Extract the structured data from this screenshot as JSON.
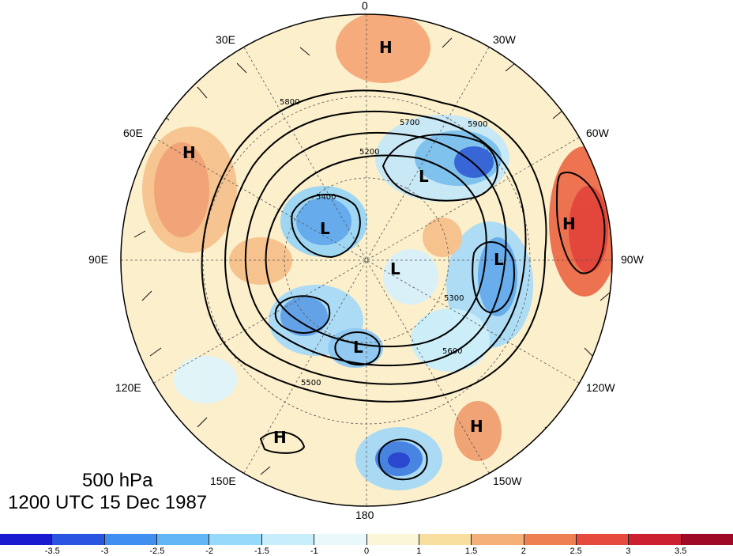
{
  "caption": {
    "level": "500 hPa",
    "time": "1200 UTC 15 Dec 1987"
  },
  "longitude_labels": [
    {
      "id": "lon-0",
      "text": "0"
    },
    {
      "id": "lon-30w",
      "text": "30W"
    },
    {
      "id": "lon-60w",
      "text": "60W"
    },
    {
      "id": "lon-90w",
      "text": "90W"
    },
    {
      "id": "lon-120w",
      "text": "120W"
    },
    {
      "id": "lon-150w",
      "text": "150W"
    },
    {
      "id": "lon-180",
      "text": "180"
    },
    {
      "id": "lon-150e",
      "text": "150E"
    },
    {
      "id": "lon-120e",
      "text": "120E"
    },
    {
      "id": "lon-90e",
      "text": "90E"
    },
    {
      "id": "lon-60e",
      "text": "60E"
    },
    {
      "id": "lon-30e",
      "text": "30E"
    }
  ],
  "pressure_centers": [
    {
      "label": "H",
      "description": "north-atlantic"
    },
    {
      "label": "H",
      "description": "eurasia-60e"
    },
    {
      "label": "H",
      "description": "north-america-60w"
    },
    {
      "label": "H",
      "description": "pacific-150w"
    },
    {
      "label": "H",
      "description": "pacific-150e"
    },
    {
      "label": "L",
      "description": "greenland"
    },
    {
      "label": "L",
      "description": "siberia"
    },
    {
      "label": "L",
      "description": "pole"
    },
    {
      "label": "L",
      "description": "hudson-bay"
    },
    {
      "label": "L",
      "description": "east-siberia"
    }
  ],
  "contour_labels": [
    "5800",
    "5700",
    "5600",
    "5500",
    "5400",
    "5300",
    "5200",
    "5900"
  ],
  "colorbar": {
    "colors": [
      "#1a1ad0",
      "#2a55e0",
      "#3f8ef0",
      "#62b6f5",
      "#96d9f8",
      "#c9eefb",
      "#e8f8fb",
      "#fbf6d8",
      "#f8dfa0",
      "#f4b078",
      "#ee7f52",
      "#e64a3c",
      "#cc2030",
      "#9e0a26"
    ],
    "ticks": [
      "-3.5",
      "-3",
      "-2.5",
      "-2",
      "-1.5",
      "-1",
      "0",
      "1",
      "1.5",
      "2",
      "2.5",
      "3",
      "3.5"
    ]
  }
}
